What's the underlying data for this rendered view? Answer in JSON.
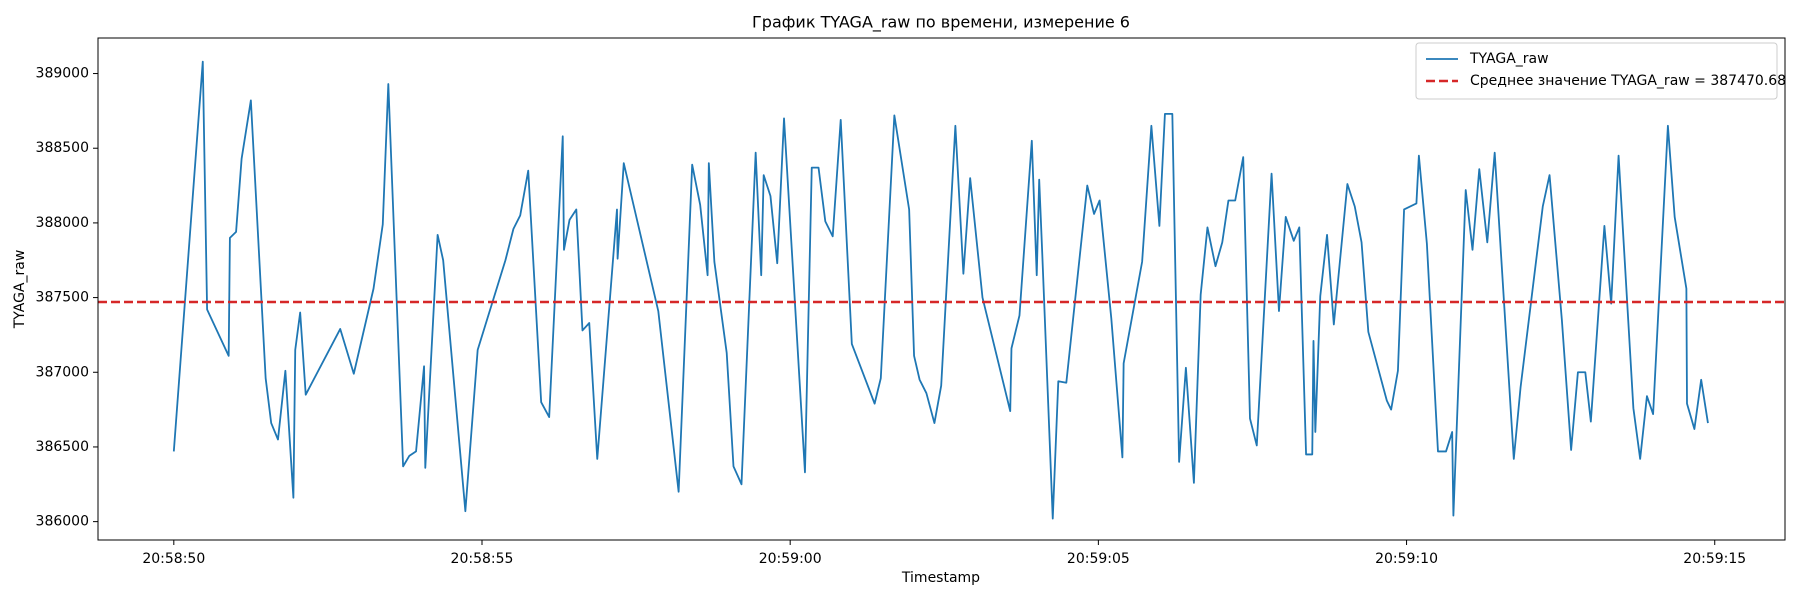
{
  "chart_data": {
    "type": "line",
    "title": "График TYAGA_raw по времени, измерение 6",
    "xlabel": "Timestamp",
    "ylabel": "TYAGA_raw",
    "ylabel_color": "#1f77b4",
    "legend": "upper right",
    "xlim": [
      "20:58:48.77",
      "20:59:16.14"
    ],
    "xticks": [
      "20:58:50",
      "20:58:55",
      "20:59:00",
      "20:59:05",
      "20:59:10",
      "20:59:15"
    ],
    "ylim": [
      385877,
      389238
    ],
    "yticks": [
      386000,
      386500,
      387000,
      387500,
      388000,
      388500,
      389000
    ],
    "x": [
      "20:58:50.00",
      "20:58:50.47",
      "20:58:50.54",
      "20:58:50.89",
      "20:58:50.91",
      "20:58:51.01",
      "20:58:51.10",
      "20:58:51.25",
      "20:58:51.49",
      "20:58:51.58",
      "20:58:51.69",
      "20:58:51.81",
      "20:58:51.94",
      "20:58:51.97",
      "20:58:52.05",
      "20:58:52.14",
      "20:58:52.70",
      "20:58:52.92",
      "20:58:53.24",
      "20:58:53.39",
      "20:58:53.48",
      "20:58:53.72",
      "20:58:53.82",
      "20:58:53.93",
      "20:58:54.06",
      "20:58:54.08",
      "20:58:54.28",
      "20:58:54.37",
      "20:58:54.73",
      "20:58:54.93",
      "20:58:55.38",
      "20:58:55.51",
      "20:58:55.62",
      "20:58:55.75",
      "20:58:55.96",
      "20:58:56.09",
      "20:58:56.31",
      "20:58:56.33",
      "20:58:56.42",
      "20:58:56.53",
      "20:58:56.63",
      "20:58:56.74",
      "20:58:56.87",
      "20:58:57.19",
      "20:58:57.20",
      "20:58:57.30",
      "20:58:57.86",
      "20:58:58.19",
      "20:58:58.41",
      "20:58:58.54",
      "20:58:58.66",
      "20:58:58.68",
      "20:58:58.77",
      "20:58:58.97",
      "20:58:59.08",
      "20:58:59.21",
      "20:58:59.44",
      "20:58:59.53",
      "20:58:59.57",
      "20:58:59.68",
      "20:58:59.79",
      "20:58:59.90",
      "20:59:00.24",
      "20:59:00.35",
      "20:59:00.46",
      "20:59:00.57",
      "20:59:00.69",
      "20:59:00.82",
      "20:59:01.00",
      "20:59:01.37",
      "20:59:01.47",
      "20:59:01.69",
      "20:59:01.93",
      "20:59:02.01",
      "20:59:02.10",
      "20:59:02.21",
      "20:59:02.34",
      "20:59:02.45",
      "20:59:02.68",
      "20:59:02.81",
      "20:59:02.92",
      "20:59:03.12",
      "20:59:03.57",
      "20:59:03.59",
      "20:59:03.72",
      "20:59:03.92",
      "20:59:04.00",
      "20:59:04.04",
      "20:59:04.09",
      "20:59:04.26",
      "20:59:04.35",
      "20:59:04.48",
      "20:59:04.82",
      "20:59:04.93",
      "20:59:05.02",
      "20:59:05.21",
      "20:59:05.39",
      "20:59:05.41",
      "20:59:05.71",
      "20:59:05.86",
      "20:59:05.99",
      "20:59:06.08",
      "20:59:06.20",
      "20:59:06.31",
      "20:59:06.42",
      "20:59:06.55",
      "20:59:06.66",
      "20:59:06.77",
      "20:59:06.90",
      "20:59:07.01",
      "20:59:07.11",
      "20:59:07.22",
      "20:59:07.35",
      "20:59:07.46",
      "20:59:07.57",
      "20:59:07.81",
      "20:59:07.93",
      "20:59:08.04",
      "20:59:08.17",
      "20:59:08.26",
      "20:59:08.37",
      "20:59:08.47",
      "20:59:08.49",
      "20:59:08.52",
      "20:59:08.60",
      "20:59:08.71",
      "20:59:08.82",
      "20:59:09.04",
      "20:59:09.16",
      "20:59:09.27",
      "20:59:09.38",
      "20:59:09.68",
      "20:59:09.75",
      "20:59:09.86",
      "20:59:09.96",
      "20:59:10.16",
      "20:59:10.20",
      "20:59:10.33",
      "20:59:10.51",
      "20:59:10.64",
      "20:59:10.74",
      "20:59:10.76",
      "20:59:10.96",
      "20:59:11.07",
      "20:59:11.18",
      "20:59:11.31",
      "20:59:11.43",
      "20:59:11.74",
      "20:59:11.85",
      "20:59:12.21",
      "20:59:12.32",
      "20:59:12.52",
      "20:59:12.67",
      "20:59:12.78",
      "20:59:12.90",
      "20:59:12.99",
      "20:59:13.21",
      "20:59:13.32",
      "20:59:13.44",
      "20:59:13.68",
      "20:59:13.79",
      "20:59:13.90",
      "20:59:14.00",
      "20:59:14.24",
      "20:59:14.35",
      "20:59:14.54",
      "20:59:14.55",
      "20:59:14.67",
      "20:59:14.78",
      "20:59:14.89"
    ],
    "series": [
      {
        "name": "TYAGA_raw",
        "color": "#1f77b4",
        "values": [
          386470,
          389080,
          387420,
          387110,
          387900,
          387940,
          388430,
          388820,
          386960,
          386660,
          386550,
          387010,
          386160,
          387150,
          387400,
          386850,
          387290,
          386990,
          387560,
          387990,
          388930,
          386370,
          386440,
          386470,
          387040,
          386360,
          387920,
          387750,
          386070,
          387150,
          387750,
          387960,
          388050,
          388350,
          386800,
          386700,
          388580,
          387820,
          388020,
          388090,
          387280,
          387330,
          386420,
          388090,
          387760,
          388400,
          387410,
          386200,
          388390,
          388120,
          387650,
          388400,
          387740,
          387130,
          386370,
          386250,
          388470,
          387650,
          388320,
          388180,
          387730,
          388700,
          386330,
          388370,
          388370,
          388010,
          387910,
          388690,
          387190,
          386790,
          386960,
          388720,
          388090,
          387110,
          386950,
          386860,
          386660,
          386910,
          388650,
          387660,
          388300,
          387500,
          386740,
          387160,
          387380,
          388550,
          387650,
          388290,
          387790,
          386020,
          386940,
          386930,
          388250,
          388060,
          388150,
          387360,
          386430,
          387060,
          387740,
          388650,
          387980,
          388730,
          388730,
          386400,
          387030,
          386260,
          387520,
          387970,
          387710,
          387870,
          388150,
          388150,
          388440,
          386690,
          386510,
          388330,
          387410,
          388040,
          387880,
          387970,
          386450,
          386450,
          387210,
          386600,
          387510,
          387920,
          387320,
          388260,
          388110,
          387870,
          387270,
          386810,
          386750,
          387010,
          388090,
          388130,
          388450,
          387860,
          386470,
          386470,
          386600,
          386040,
          388220,
          387820,
          388360,
          387870,
          388470,
          386420,
          386900,
          388110,
          388320,
          387350,
          386480,
          387000,
          387000,
          386670,
          387980,
          387460,
          388450,
          386760,
          386420,
          386840,
          386720,
          388650,
          388040,
          387560,
          386790,
          386620,
          386950,
          386660
        ]
      }
    ],
    "mean_line": {
      "name": "Среднее значение TYAGA_raw = 387470.68",
      "value": 387470.68,
      "color": "#d62728"
    }
  }
}
